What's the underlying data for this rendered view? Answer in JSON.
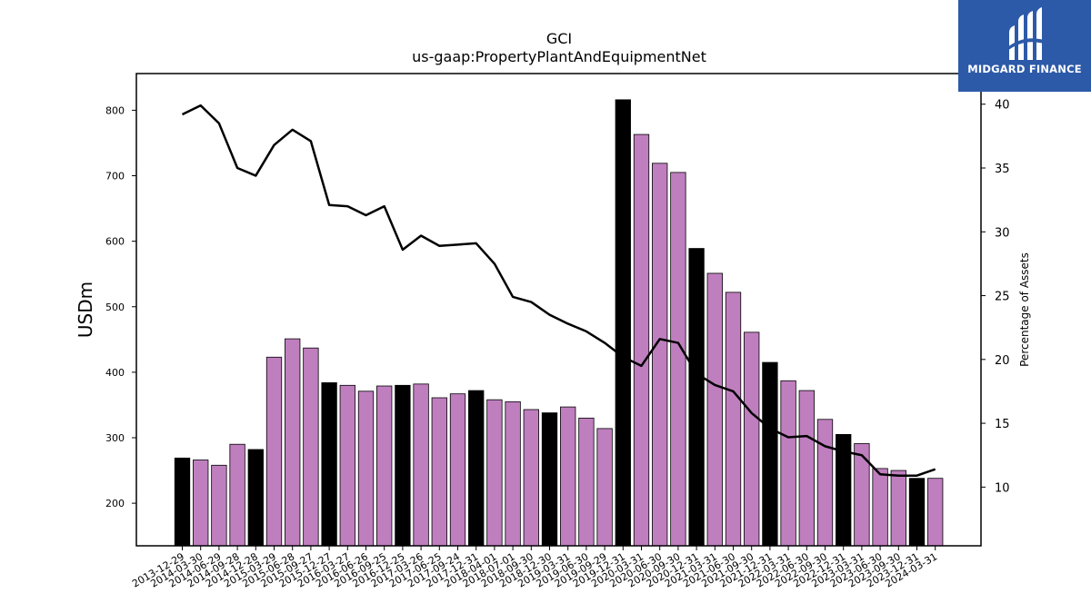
{
  "chart_data": {
    "type": "bar",
    "title": "GCI",
    "subtitle": "us-gaap:PropertyPlantAndEquipmentNet",
    "ylabel": "USDm",
    "y2label": "Percentage of Assets",
    "ylim": [
      135,
      856
    ],
    "y2lim": [
      5.4,
      42.4
    ],
    "yticks": [
      200,
      300,
      400,
      500,
      600,
      700,
      800
    ],
    "y2ticks": [
      10,
      15,
      20,
      25,
      30,
      35,
      40
    ],
    "categories": [
      "2013-12-29",
      "2014-03-30",
      "2014-06-29",
      "2014-09-28",
      "2014-12-28",
      "2015-03-29",
      "2015-06-28",
      "2015-09-27",
      "2015-12-27",
      "2016-03-27",
      "2016-06-26",
      "2016-09-25",
      "2016-12-25",
      "2017-03-26",
      "2017-06-25",
      "2017-09-24",
      "2017-12-31",
      "2018-04-01",
      "2018-07-01",
      "2018-09-30",
      "2018-12-30",
      "2019-03-31",
      "2019-06-30",
      "2019-09-29",
      "2019-12-31",
      "2020-03-31",
      "2020-06-30",
      "2020-09-30",
      "2020-12-31",
      "2021-03-31",
      "2021-06-30",
      "2021-09-30",
      "2021-12-31",
      "2022-03-31",
      "2022-06-30",
      "2022-09-30",
      "2022-12-31",
      "2023-03-31",
      "2023-06-30",
      "2023-09-30",
      "2023-12-31",
      "2024-03-31"
    ],
    "series": [
      {
        "type": "bar",
        "axis": "left",
        "values": [
          269,
          266,
          258,
          290,
          282,
          423,
          451,
          437,
          384,
          380,
          371,
          379,
          380,
          382,
          361,
          367,
          372,
          358,
          355,
          343,
          338,
          347,
          330,
          314,
          816,
          763,
          719,
          705,
          589,
          551,
          522,
          461,
          415,
          387,
          372,
          328,
          305,
          291,
          253,
          250,
          238,
          238
        ],
        "highlight": [
          true,
          false,
          false,
          false,
          true,
          false,
          false,
          false,
          true,
          false,
          false,
          false,
          true,
          false,
          false,
          false,
          true,
          false,
          false,
          false,
          true,
          false,
          false,
          false,
          true,
          false,
          false,
          false,
          true,
          false,
          false,
          false,
          true,
          false,
          false,
          false,
          true,
          false,
          false,
          false,
          true,
          false
        ]
      },
      {
        "type": "line",
        "axis": "right",
        "values": [
          39.2,
          39.9,
          38.5,
          35.0,
          34.4,
          36.8,
          38.0,
          37.1,
          32.1,
          32.0,
          31.3,
          32.0,
          28.6,
          29.7,
          28.9,
          29.0,
          29.1,
          27.5,
          24.9,
          24.5,
          23.5,
          22.8,
          22.2,
          21.3,
          20.2,
          19.5,
          21.6,
          21.3,
          18.9,
          18.0,
          17.5,
          15.8,
          14.6,
          13.9,
          14.0,
          13.2,
          12.8,
          12.5,
          11.0,
          10.9,
          10.9,
          11.4
        ]
      }
    ],
    "colors": {
      "bar": "#bf7fbf",
      "bar_highlight": "#000000",
      "line": "#000000",
      "bar_edge": "#000000"
    },
    "grid": false,
    "legend": "none"
  },
  "logo": {
    "text": "MIDGARD FINANCE"
  }
}
